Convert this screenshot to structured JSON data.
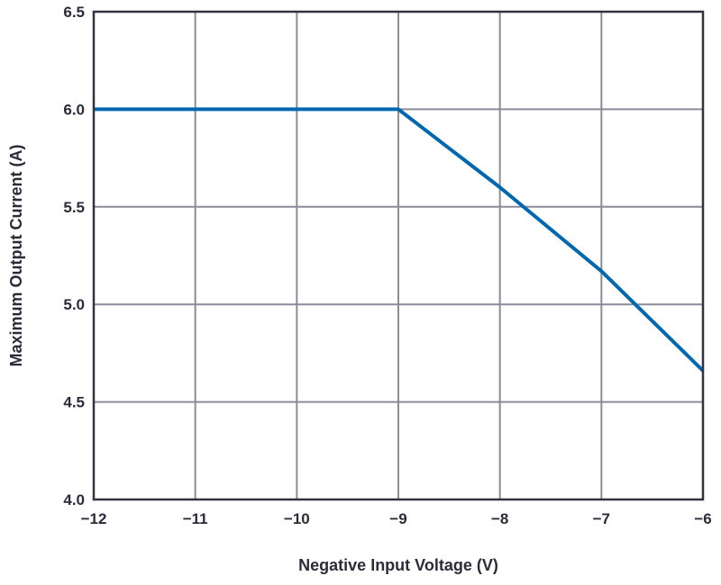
{
  "chart_data": {
    "type": "line",
    "title": "",
    "xlabel": "Negative Input Voltage (V)",
    "ylabel": "Maximum Output Current (A)",
    "xlim": [
      -12,
      -6
    ],
    "ylim": [
      4.0,
      6.5
    ],
    "xticks": [
      -12,
      -11,
      -10,
      -9,
      -8,
      -7,
      -6
    ],
    "xtick_labels": [
      "−12",
      "−11",
      "−10",
      "−9",
      "−8",
      "−7",
      "−6"
    ],
    "yticks": [
      4.0,
      4.5,
      5.0,
      5.5,
      6.0,
      6.5
    ],
    "ytick_labels": [
      "4.0",
      "4.5",
      "5.0",
      "5.5",
      "6.0",
      "6.5"
    ],
    "grid": true,
    "series": [
      {
        "color": "#0067b1",
        "x": [
          -12,
          -11,
          -10,
          -9,
          -8,
          -7,
          -6
        ],
        "y": [
          6.0,
          6.0,
          6.0,
          6.0,
          5.6,
          5.17,
          4.66
        ]
      }
    ]
  }
}
